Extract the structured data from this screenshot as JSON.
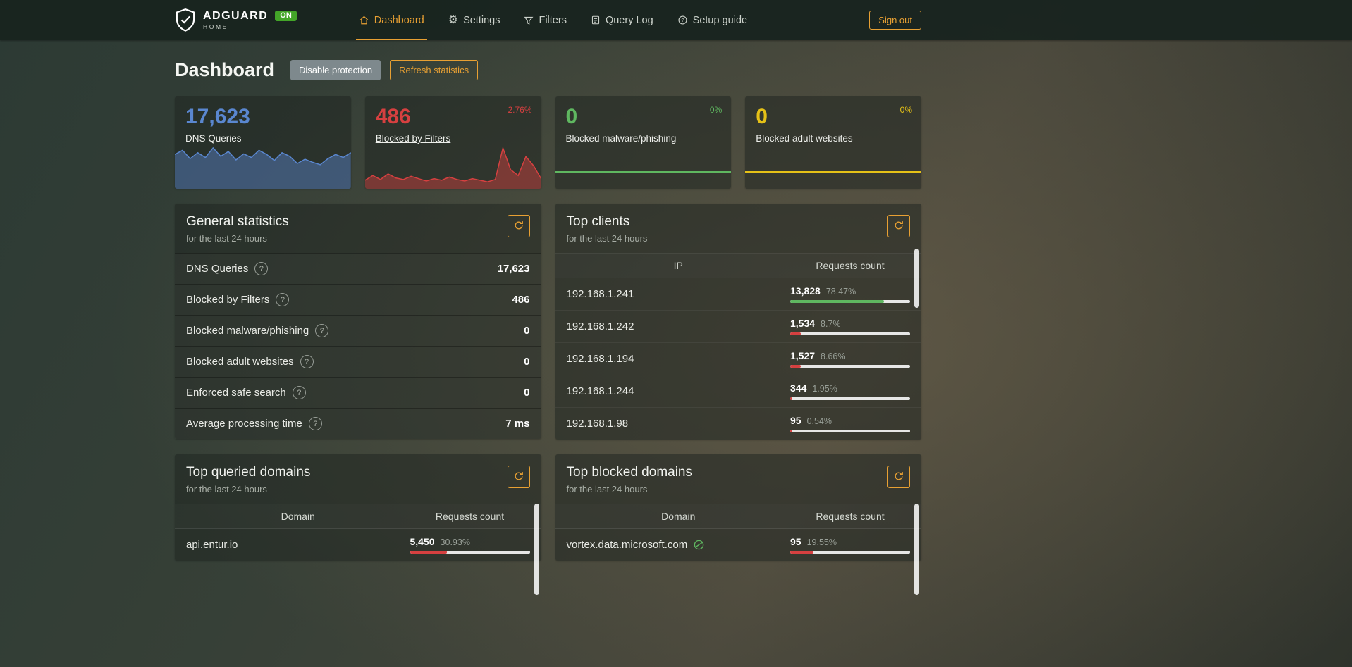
{
  "colors": {
    "accent_orange": "#e8a033",
    "blue": "#5a87d0",
    "red": "#d64040",
    "green": "#5fb760",
    "yellow": "#e5c117",
    "badge_green": "#43a528"
  },
  "navbar": {
    "brand_name": "ADGUARD",
    "brand_sub": "HOME",
    "status_badge": "ON",
    "sign_out": "Sign out",
    "items": [
      {
        "label": "Dashboard",
        "icon": "home-icon",
        "active": true
      },
      {
        "label": "Settings",
        "icon": "gear-icon",
        "active": false
      },
      {
        "label": "Filters",
        "icon": "filter-icon",
        "active": false
      },
      {
        "label": "Query Log",
        "icon": "query-log-icon",
        "active": false
      },
      {
        "label": "Setup guide",
        "icon": "help-icon",
        "active": false
      }
    ]
  },
  "page": {
    "title": "Dashboard",
    "disable_protection": "Disable protection",
    "refresh_statistics": "Refresh statistics"
  },
  "stat_cards": [
    {
      "value": "17,623",
      "label": "DNS Queries",
      "color": "#5a87d0",
      "delta": "",
      "delta_color": "",
      "link": false,
      "spark": [
        55,
        62,
        48,
        58,
        50,
        66,
        52,
        60,
        46,
        56,
        50,
        62,
        55,
        45,
        58,
        52,
        40,
        47,
        42,
        38,
        48,
        55,
        50,
        58
      ]
    },
    {
      "value": "486",
      "label": "Blocked by Filters",
      "color": "#d64040",
      "delta": "2.76%",
      "delta_color": "#d64040",
      "link": true,
      "spark": [
        18,
        30,
        20,
        34,
        24,
        20,
        28,
        22,
        16,
        22,
        18,
        26,
        20,
        16,
        22,
        18,
        14,
        20,
        100,
        45,
        30,
        78,
        55,
        22
      ]
    },
    {
      "value": "0",
      "label": "Blocked malware/phishing",
      "color": "#5fb760",
      "delta": "0%",
      "delta_color": "#5fb760",
      "link": false,
      "spark": [
        0,
        0,
        0,
        0,
        0,
        0,
        0,
        0
      ]
    },
    {
      "value": "0",
      "label": "Blocked adult websites",
      "color": "#e5c117",
      "delta": "0%",
      "delta_color": "#e5c117",
      "link": false,
      "spark": [
        0,
        0,
        0,
        0,
        0,
        0,
        0,
        0
      ]
    }
  ],
  "general_stats": {
    "title": "General statistics",
    "subtitle": "for the last 24 hours",
    "rows": [
      {
        "label": "DNS Queries",
        "value": "17,623"
      },
      {
        "label": "Blocked by Filters",
        "value": "486"
      },
      {
        "label": "Blocked malware/phishing",
        "value": "0"
      },
      {
        "label": "Blocked adult websites",
        "value": "0"
      },
      {
        "label": "Enforced safe search",
        "value": "0"
      },
      {
        "label": "Average processing time",
        "value": "7 ms"
      }
    ]
  },
  "top_clients": {
    "title": "Top clients",
    "subtitle": "for the last 24 hours",
    "headers": [
      "IP",
      "Requests count"
    ],
    "rows": [
      {
        "ip": "192.168.1.241",
        "count": "13,828",
        "percent": "78.47%",
        "bar_percent": 78.47,
        "bar_color": "#5fb760"
      },
      {
        "ip": "192.168.1.242",
        "count": "1,534",
        "percent": "8.7%",
        "bar_percent": 8.7,
        "bar_color": "#d64040"
      },
      {
        "ip": "192.168.1.194",
        "count": "1,527",
        "percent": "8.66%",
        "bar_percent": 8.66,
        "bar_color": "#d64040"
      },
      {
        "ip": "192.168.1.244",
        "count": "344",
        "percent": "1.95%",
        "bar_percent": 1.95,
        "bar_color": "#d64040"
      },
      {
        "ip": "192.168.1.98",
        "count": "95",
        "percent": "0.54%",
        "bar_percent": 0.54,
        "bar_color": "#d64040"
      }
    ]
  },
  "top_queried": {
    "title": "Top queried domains",
    "subtitle": "for the last 24 hours",
    "headers": [
      "Domain",
      "Requests count"
    ],
    "rows": [
      {
        "domain": "api.entur.io",
        "count": "5,450",
        "percent": "30.93%",
        "bar_percent": 30.93,
        "bar_color": "#d64040",
        "icon": false
      }
    ]
  },
  "top_blocked": {
    "title": "Top blocked domains",
    "subtitle": "for the last 24 hours",
    "headers": [
      "Domain",
      "Requests count"
    ],
    "rows": [
      {
        "domain": "vortex.data.microsoft.com",
        "count": "95",
        "percent": "19.55%",
        "bar_percent": 19.55,
        "bar_color": "#d64040",
        "icon": true
      }
    ]
  }
}
